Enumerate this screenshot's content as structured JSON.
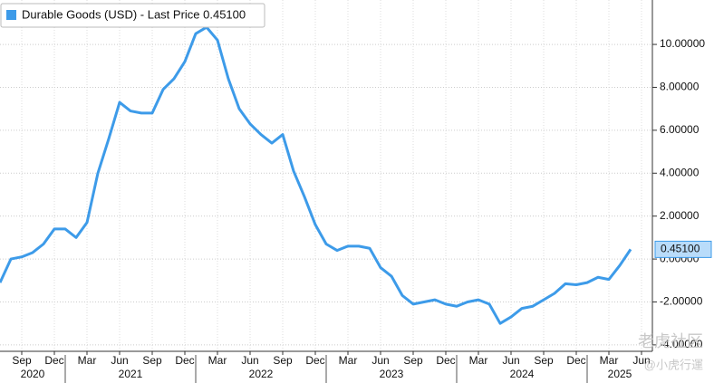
{
  "chart_data": {
    "type": "line",
    "x": [
      "2020-07",
      "2020-08",
      "2020-09",
      "2020-10",
      "2020-11",
      "2020-12",
      "2021-01",
      "2021-02",
      "2021-03",
      "2021-04",
      "2021-05",
      "2021-06",
      "2021-07",
      "2021-08",
      "2021-09",
      "2021-10",
      "2021-11",
      "2021-12",
      "2022-01",
      "2022-02",
      "2022-03",
      "2022-04",
      "2022-05",
      "2022-06",
      "2022-07",
      "2022-08",
      "2022-09",
      "2022-10",
      "2022-11",
      "2022-12",
      "2023-01",
      "2023-02",
      "2023-03",
      "2023-04",
      "2023-05",
      "2023-06",
      "2023-07",
      "2023-08",
      "2023-09",
      "2023-10",
      "2023-11",
      "2023-12",
      "2024-01",
      "2024-02",
      "2024-03",
      "2024-04",
      "2024-05",
      "2024-06",
      "2024-07",
      "2024-08",
      "2024-09",
      "2024-10",
      "2024-11",
      "2024-12",
      "2025-01",
      "2025-02",
      "2025-03",
      "2025-04",
      "2025-05"
    ],
    "series": [
      {
        "name": "Durable Goods (USD) - Last Price 0.45100",
        "color": "#3d9be9",
        "values": [
          -1.1,
          0.0,
          0.1,
          0.3,
          0.7,
          1.4,
          1.4,
          1.0,
          1.7,
          4.0,
          5.6,
          7.3,
          6.9,
          6.8,
          6.8,
          7.9,
          8.4,
          9.2,
          10.5,
          10.8,
          10.2,
          8.4,
          7.0,
          6.3,
          5.8,
          5.4,
          5.8,
          4.1,
          2.9,
          1.6,
          0.7,
          0.4,
          0.6,
          0.6,
          0.5,
          -0.4,
          -0.8,
          -1.7,
          -2.1,
          -2.0,
          -1.9,
          -2.1,
          -2.2,
          -2.0,
          -1.9,
          -2.1,
          -3.0,
          -2.7,
          -2.3,
          -2.2,
          -1.9,
          -1.6,
          -1.15,
          -1.2,
          -1.1,
          -0.85,
          -0.95,
          -0.3,
          0.451
        ]
      }
    ],
    "last_value_label": "0.45100",
    "xlim": [
      "2020-07",
      "2025-07"
    ],
    "xticks": [
      {
        "value": "2020-09",
        "label": "Sep"
      },
      {
        "value": "2020-12",
        "label": "Dec"
      },
      {
        "value": "2021-03",
        "label": "Mar"
      },
      {
        "value": "2021-06",
        "label": "Jun"
      },
      {
        "value": "2021-09",
        "label": "Sep"
      },
      {
        "value": "2021-12",
        "label": "Dec"
      },
      {
        "value": "2022-03",
        "label": "Mar"
      },
      {
        "value": "2022-06",
        "label": "Jun"
      },
      {
        "value": "2022-09",
        "label": "Sep"
      },
      {
        "value": "2022-12",
        "label": "Dec"
      },
      {
        "value": "2023-03",
        "label": "Mar"
      },
      {
        "value": "2023-06",
        "label": "Jun"
      },
      {
        "value": "2023-09",
        "label": "Sep"
      },
      {
        "value": "2023-12",
        "label": "Dec"
      },
      {
        "value": "2024-03",
        "label": "Mar"
      },
      {
        "value": "2024-06",
        "label": "Jun"
      },
      {
        "value": "2024-09",
        "label": "Sep"
      },
      {
        "value": "2024-12",
        "label": "Dec"
      },
      {
        "value": "2025-03",
        "label": "Mar"
      },
      {
        "value": "2025-06",
        "label": "Jun"
      }
    ],
    "years": [
      2020,
      2021,
      2022,
      2023,
      2024,
      2025
    ],
    "ylim": [
      -4.3,
      12.07
    ],
    "yticks": [
      {
        "value": -4,
        "label": "-4.00000"
      },
      {
        "value": -2,
        "label": "-2.00000"
      },
      {
        "value": 0,
        "label": "0.00000"
      },
      {
        "value": 2,
        "label": "2.00000"
      },
      {
        "value": 4,
        "label": "4.00000"
      },
      {
        "value": 6,
        "label": "6.00000"
      },
      {
        "value": 8,
        "label": "8.00000"
      },
      {
        "value": 10,
        "label": "10.00000"
      }
    ],
    "grid": true,
    "watermark": [
      "老虎社区",
      "@小虎行運"
    ]
  }
}
